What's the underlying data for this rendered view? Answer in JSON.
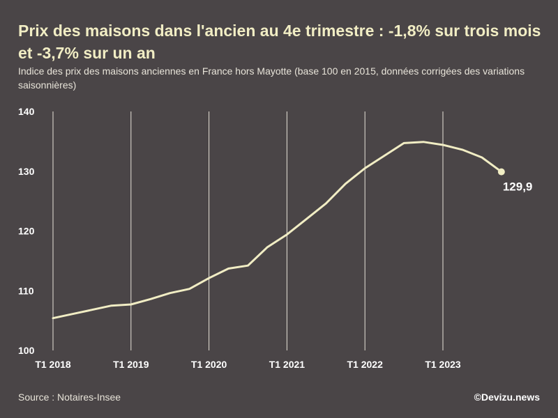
{
  "chart_data": {
    "type": "line",
    "title": "Prix des maisons dans l'ancien au 4e trimestre : -1,8% sur trois mois et -3,7% sur un an",
    "subtitle": "Indice des prix des maisons anciennes en France hors Mayotte (base 100 en 2015, données corrigées des variations saisonnières)",
    "xlabel": "",
    "ylabel": "",
    "ylim": [
      100,
      140
    ],
    "yticks": [
      "100",
      "110",
      "120",
      "130",
      "140"
    ],
    "xticks": [
      "T1 2018",
      "T1 2019",
      "T1 2020",
      "T1 2021",
      "T1 2022",
      "T1 2023"
    ],
    "grid": "vertical",
    "color": "#f1edc4",
    "series": [
      {
        "x": [
          "T1 2018",
          "T2 2018",
          "T3 2018",
          "T4 2018",
          "T1 2019",
          "T2 2019",
          "T3 2019",
          "T4 2019",
          "T1 2020",
          "T2 2020",
          "T3 2020",
          "T4 2020",
          "T1 2021",
          "T2 2021",
          "T3 2021",
          "T4 2021",
          "T1 2022",
          "T2 2022",
          "T3 2022",
          "T4 2022",
          "T1 2023",
          "T2 2023",
          "T3 2023",
          "T4 2023"
        ],
        "values": [
          105.4,
          106.1,
          106.8,
          107.5,
          107.7,
          108.6,
          109.6,
          110.3,
          112.1,
          113.7,
          114.2,
          117.3,
          119.4,
          122.0,
          124.6,
          127.9,
          130.5,
          132.6,
          134.7,
          134.9,
          134.4,
          133.6,
          132.3,
          129.9
        ]
      }
    ],
    "end_label": "129,9"
  },
  "footer": {
    "source": "Source : Notaires-Insee",
    "credit": "©Devizu.news"
  }
}
